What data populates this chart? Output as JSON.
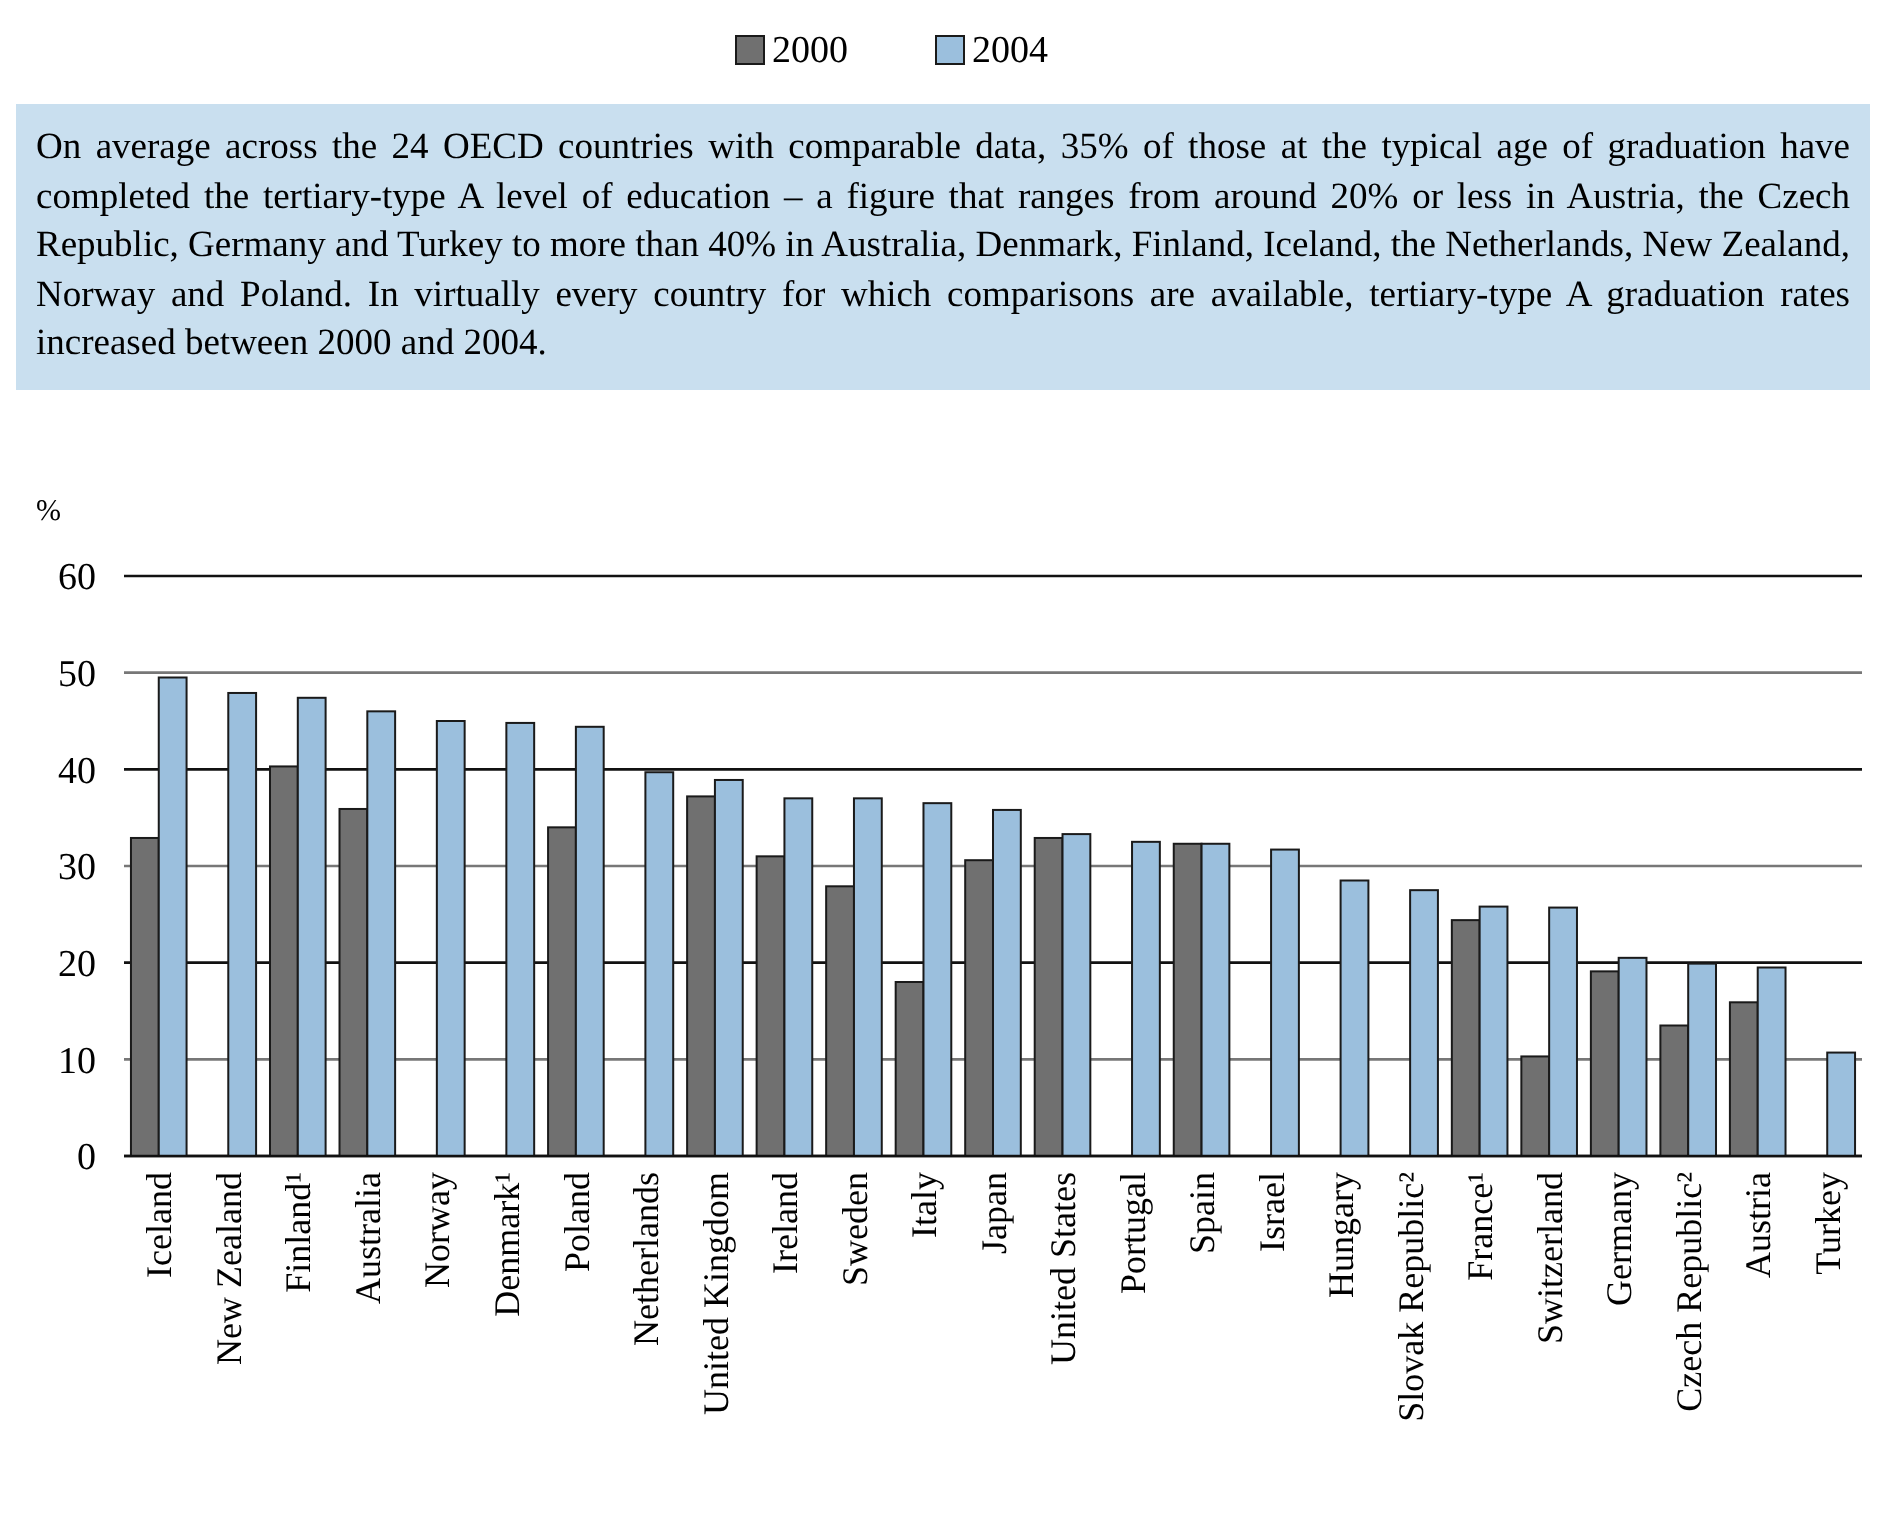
{
  "chart_data": {
    "type": "bar",
    "ylabel": "%",
    "annotations": [
      "On average across the 24 OECD countries with comparable data, 35% of those at the typical age of graduation have completed the tertiary-type A level of education – a figure that ranges from around 20% or less in Austria, the Czech Republic, Germany and Turkey to more than 40% in Australia, Denmark, Finland, Iceland, the Netherlands, New Zealand, Norway and Poland. In virtually every country for which comparisons are available, tertiary-type A graduation rates increased between 2000 and 2004."
    ],
    "categories": [
      "Iceland",
      "New Zealand",
      "Finland¹",
      "Australia",
      "Norway",
      "Denmark¹",
      "Poland",
      "Netherlands",
      "United Kingdom",
      "Ireland",
      "Sweden",
      "Italy",
      "Japan",
      "United States",
      "Portugal",
      "Spain",
      "Israel",
      "Hungary",
      "Slovak Republic²",
      "France¹",
      "Switzerland",
      "Germany",
      "Czech Republic²",
      "Austria",
      "Turkey"
    ],
    "series": [
      {
        "name": "2000",
        "color": "#707070",
        "values": [
          32.9,
          null,
          40.3,
          35.9,
          null,
          null,
          34.0,
          null,
          37.2,
          31.0,
          27.9,
          18.0,
          30.6,
          32.9,
          null,
          32.3,
          null,
          null,
          null,
          24.4,
          10.3,
          19.1,
          13.5,
          15.9,
          null
        ]
      },
      {
        "name": "2004",
        "color": "#9bbfdd",
        "values": [
          49.5,
          47.9,
          47.4,
          46.0,
          45.0,
          44.8,
          44.4,
          39.7,
          38.9,
          37.0,
          37.0,
          36.5,
          35.8,
          33.3,
          32.5,
          32.3,
          31.7,
          28.5,
          27.5,
          25.8,
          25.7,
          20.5,
          19.9,
          19.5,
          10.7
        ]
      }
    ],
    "ylim": [
      0,
      60
    ],
    "yticks": [
      0,
      10,
      20,
      30,
      40,
      50,
      60
    ],
    "grid": "y",
    "legend": "top"
  }
}
